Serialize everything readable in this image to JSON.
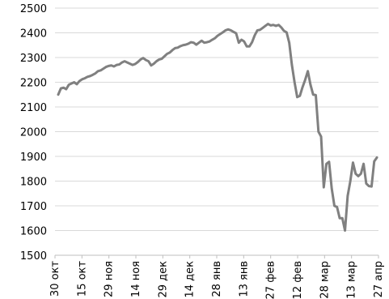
{
  "chart_data": {
    "type": "line",
    "title": "",
    "xlabel": "",
    "ylabel": "",
    "ylim": [
      1500,
      2500
    ],
    "yticks": [
      1500,
      1600,
      1700,
      1800,
      1900,
      2000,
      2100,
      2200,
      2300,
      2400,
      2500
    ],
    "grid": true,
    "legend": "none",
    "x_tick_labels": [
      "30 окт",
      "15 окт",
      "29 ноя",
      "14 ноя",
      "29 дек",
      "14 дек",
      "28 янв",
      "13 янв",
      "27 фев",
      "12 фев",
      "28 мар",
      "13 мар",
      "27 апр"
    ],
    "series": [
      {
        "color": "#808080",
        "values": [
          2150,
          2175,
          2178,
          2172,
          2190,
          2195,
          2200,
          2192,
          2205,
          2212,
          2216,
          2222,
          2225,
          2230,
          2236,
          2245,
          2248,
          2255,
          2262,
          2266,
          2268,
          2264,
          2270,
          2272,
          2280,
          2285,
          2280,
          2275,
          2270,
          2274,
          2282,
          2292,
          2298,
          2290,
          2285,
          2268,
          2275,
          2285,
          2292,
          2295,
          2305,
          2315,
          2320,
          2330,
          2338,
          2340,
          2346,
          2350,
          2352,
          2356,
          2362,
          2360,
          2352,
          2360,
          2368,
          2360,
          2362,
          2365,
          2372,
          2378,
          2388,
          2395,
          2402,
          2410,
          2414,
          2410,
          2404,
          2398,
          2360,
          2372,
          2365,
          2345,
          2345,
          2362,
          2390,
          2410,
          2412,
          2420,
          2428,
          2436,
          2430,
          2432,
          2428,
          2432,
          2422,
          2408,
          2402,
          2360,
          2270,
          2200,
          2140,
          2145,
          2180,
          2210,
          2245,
          2190,
          2150,
          2148,
          2000,
          1980,
          1775,
          1870,
          1878,
          1770,
          1700,
          1695,
          1650,
          1650,
          1600,
          1740,
          1800,
          1875,
          1830,
          1820,
          1830,
          1870,
          1790,
          1780,
          1778,
          1880,
          1895
        ]
      }
    ]
  }
}
